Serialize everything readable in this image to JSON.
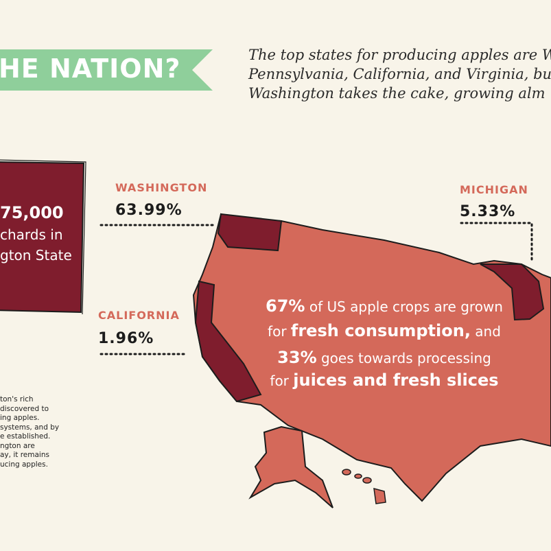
{
  "banner": {
    "title": "HE NATION?"
  },
  "intro": {
    "lines": [
      "The top states for producing apples are W",
      "Pennsylvania, California, and Virginia, bu",
      "Washington takes the cake, growing alm"
    ]
  },
  "box": {
    "number": "75,000",
    "lines": [
      "chards in",
      "gton State"
    ]
  },
  "states": [
    {
      "name": "WASHINGTON",
      "share": "63.99%"
    },
    {
      "name": "MICHIGAN",
      "share": "5.33%"
    },
    {
      "name": "CALIFORNIA",
      "share": "1.96%"
    }
  ],
  "center": {
    "lines": [
      [
        "67%",
        "of US apple crops are grown"
      ],
      [
        "for",
        "fresh consumption,",
        "and"
      ],
      [
        "33%",
        "goes towards processing"
      ],
      [
        "for",
        "juices and fresh slices"
      ]
    ]
  },
  "note": {
    "lines": [
      "ton's rich",
      "discovered to",
      "ing apples.",
      "systems, and by",
      "e established.",
      "ngton are",
      "ay, it remains",
      "ucing apples."
    ]
  }
}
